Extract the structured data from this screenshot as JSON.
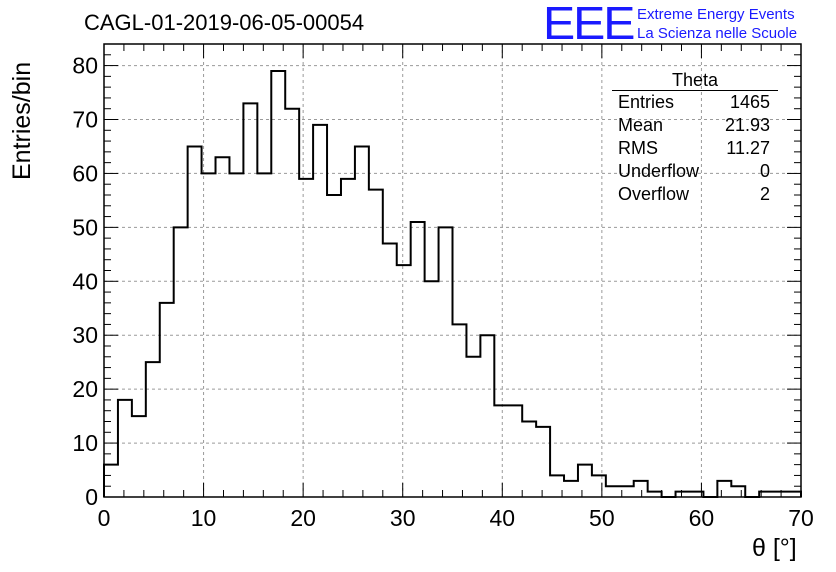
{
  "title": "CAGL-01-2019-06-05-00054",
  "logo": {
    "mark": "EEE",
    "line1": "Extreme Energy Events",
    "line2": "La Scienza nelle Scuole"
  },
  "stats": {
    "title": "Theta",
    "rows": [
      {
        "label": "Entries",
        "value": "1465"
      },
      {
        "label": "Mean",
        "value": "21.93"
      },
      {
        "label": "RMS",
        "value": "11.27"
      },
      {
        "label": "Underflow",
        "value": "0"
      },
      {
        "label": "Overflow",
        "value": "2"
      }
    ]
  },
  "chart_data": {
    "type": "bar",
    "style": "step histogram",
    "title": "CAGL-01-2019-06-05-00054",
    "xlabel": "θ [°]",
    "ylabel": "Entries/bin",
    "xlim": [
      0,
      70
    ],
    "ylim": [
      0,
      84
    ],
    "bin_width": 1.4,
    "x_ticks": [
      0,
      10,
      20,
      30,
      40,
      50,
      60,
      70
    ],
    "y_ticks": [
      0,
      10,
      20,
      30,
      40,
      50,
      60,
      70,
      80
    ],
    "grid": true,
    "line_color": "#000000",
    "series": [
      {
        "values": [
          6,
          18,
          15,
          25,
          36,
          50,
          65,
          60,
          63,
          60,
          73,
          60,
          79,
          72,
          59,
          69,
          56,
          59,
          65,
          57,
          47,
          43,
          51,
          40,
          50,
          32,
          26,
          30,
          17,
          17,
          14,
          13,
          4,
          3,
          6,
          4,
          2,
          2,
          3,
          1,
          0,
          1,
          1,
          0,
          3,
          2,
          0,
          1,
          1,
          1
        ]
      }
    ]
  }
}
